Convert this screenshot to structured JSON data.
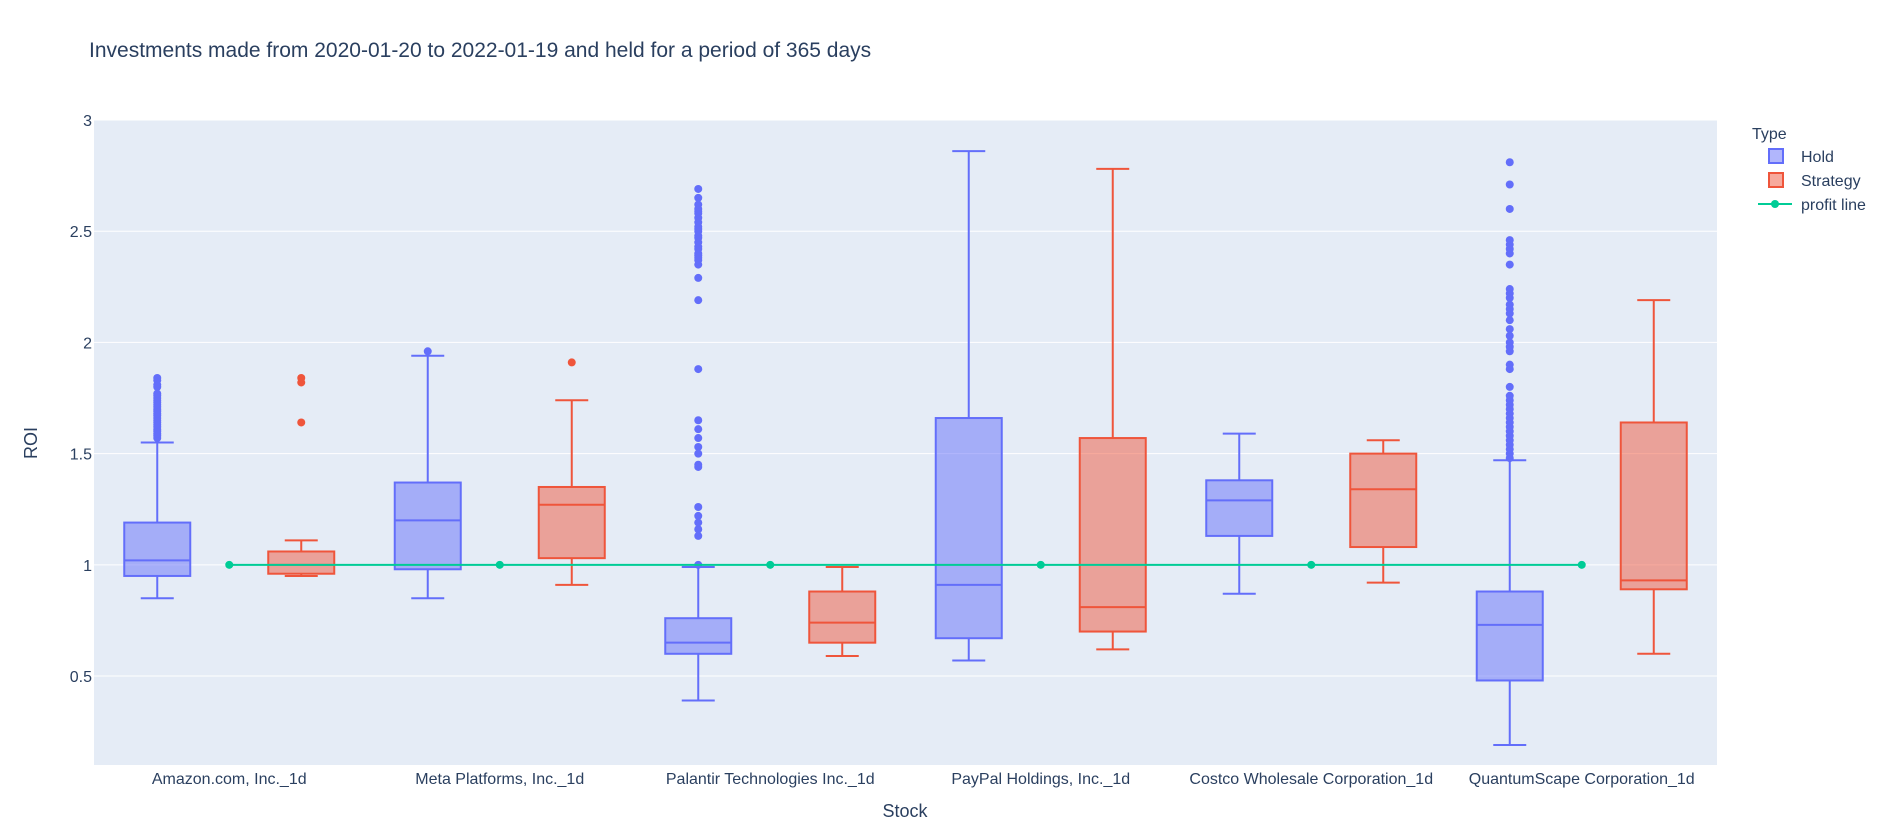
{
  "chart_data": {
    "type": "box",
    "title": "Investments made from 2020-01-20 to 2022-01-19 and held for a period of 365 days",
    "xlabel": "Stock",
    "ylabel": "ROI",
    "ylim": [
      0.1,
      3.0
    ],
    "yticks": [
      "0.5",
      "1",
      "1.5",
      "2",
      "2.5",
      "3"
    ],
    "categories": [
      "Amazon.com, Inc._1d",
      "Meta Platforms, Inc._1d",
      "Palantir Technologies Inc._1d",
      "PayPal Holdings, Inc._1d",
      "Costco Wholesale Corporation_1d",
      "QuantumScape Corporation_1d"
    ],
    "grid": true,
    "legend": {
      "title": "Type",
      "position": "top-right",
      "entries": [
        "Hold",
        "Strategy",
        "profit line"
      ]
    },
    "colors": {
      "Hold": "#636efa",
      "Strategy": "#ef553b",
      "profit line": "#00cc96",
      "plot_bg": "#e5ecf6"
    },
    "series": [
      {
        "name": "Hold",
        "boxes": [
          {
            "min": 0.85,
            "q1": 0.95,
            "median": 1.02,
            "q3": 1.19,
            "max": 1.55,
            "outliers": [
              1.57,
              1.58,
              1.59,
              1.6,
              1.61,
              1.62,
              1.63,
              1.64,
              1.65,
              1.66,
              1.67,
              1.68,
              1.69,
              1.7,
              1.71,
              1.72,
              1.73,
              1.74,
              1.75,
              1.76,
              1.77,
              1.8,
              1.81,
              1.83,
              1.84
            ]
          },
          {
            "min": 0.85,
            "q1": 0.98,
            "median": 1.2,
            "q3": 1.37,
            "max": 1.94,
            "outliers": [
              1.96
            ]
          },
          {
            "min": 0.39,
            "q1": 0.6,
            "median": 0.65,
            "q3": 0.76,
            "max": 0.99,
            "outliers": [
              1.0,
              1.13,
              1.16,
              1.19,
              1.22,
              1.26,
              1.44,
              1.45,
              1.5,
              1.53,
              1.57,
              1.61,
              1.65,
              1.88,
              2.19,
              2.29,
              2.35,
              2.37,
              2.38,
              2.39,
              2.4,
              2.42,
              2.43,
              2.45,
              2.47,
              2.48,
              2.5,
              2.51,
              2.52,
              2.54,
              2.56,
              2.58,
              2.59,
              2.6,
              2.62,
              2.65,
              2.69
            ]
          },
          {
            "min": 0.57,
            "q1": 0.67,
            "median": 0.91,
            "q3": 1.66,
            "max": 2.86,
            "outliers": []
          },
          {
            "min": 0.87,
            "q1": 1.13,
            "median": 1.29,
            "q3": 1.38,
            "max": 1.59,
            "outliers": []
          },
          {
            "min": 0.19,
            "q1": 0.48,
            "median": 0.73,
            "q3": 0.88,
            "max": 1.47,
            "outliers": [
              1.48,
              1.5,
              1.52,
              1.54,
              1.56,
              1.58,
              1.6,
              1.62,
              1.64,
              1.66,
              1.68,
              1.7,
              1.72,
              1.74,
              1.76,
              1.8,
              1.88,
              1.9,
              1.96,
              1.98,
              2.0,
              2.03,
              2.06,
              2.1,
              2.13,
              2.15,
              2.17,
              2.2,
              2.22,
              2.24,
              2.35,
              2.4,
              2.42,
              2.44,
              2.46,
              2.6,
              2.71,
              2.81
            ]
          }
        ]
      },
      {
        "name": "Strategy",
        "boxes": [
          {
            "min": 0.95,
            "q1": 0.96,
            "median": 1.0,
            "q3": 1.06,
            "max": 1.11,
            "outliers": [
              1.64,
              1.82,
              1.84
            ]
          },
          {
            "min": 0.91,
            "q1": 1.03,
            "median": 1.27,
            "q3": 1.35,
            "max": 1.74,
            "outliers": [
              1.91
            ]
          },
          {
            "min": 0.59,
            "q1": 0.65,
            "median": 0.74,
            "q3": 0.88,
            "max": 0.99,
            "outliers": []
          },
          {
            "min": 0.62,
            "q1": 0.7,
            "median": 0.81,
            "q3": 1.57,
            "max": 2.78,
            "outliers": []
          },
          {
            "min": 0.92,
            "q1": 1.08,
            "median": 1.34,
            "q3": 1.5,
            "max": 1.56,
            "outliers": []
          },
          {
            "min": 0.6,
            "q1": 0.89,
            "median": 0.93,
            "q3": 1.64,
            "max": 2.19,
            "outliers": []
          }
        ]
      }
    ],
    "profit_line": {
      "name": "profit line",
      "value": 1.0
    }
  }
}
